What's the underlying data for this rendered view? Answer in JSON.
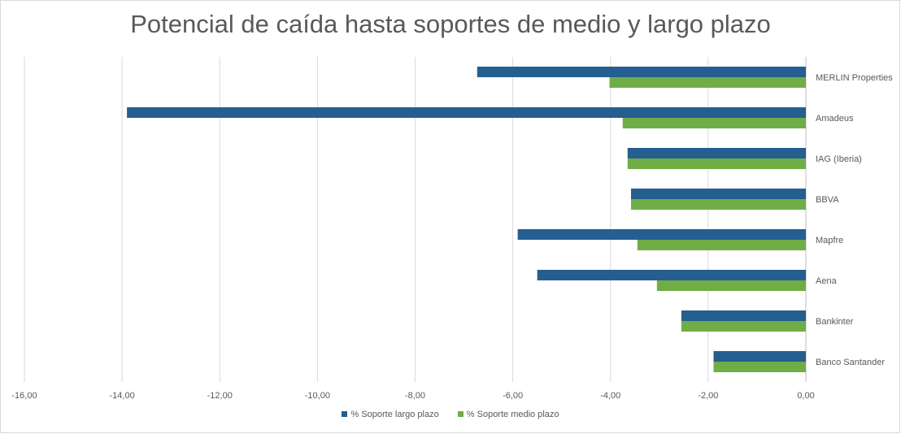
{
  "chart_data": {
    "type": "bar",
    "orientation": "horizontal",
    "title": "Potencial de caída hasta soportes de medio y largo plazo",
    "categories": [
      "MERLIN Properties",
      "Amadeus",
      "IAG (Iberia)",
      "BBVA",
      "Mapfre",
      "Aena",
      "Bankinter",
      "Banco Santander"
    ],
    "series": [
      {
        "name": "% Soporte largo plazo",
        "color": "#255e91",
        "values": [
          -6.73,
          -13.9,
          -3.65,
          -3.58,
          -5.9,
          -5.5,
          -2.55,
          -1.89
        ]
      },
      {
        "name": "% Soporte medio plazo",
        "color": "#70ad47",
        "values": [
          -4.02,
          -3.75,
          -3.65,
          -3.58,
          -3.45,
          -3.05,
          -2.55,
          -1.89
        ]
      }
    ],
    "xlim": [
      -16,
      0
    ],
    "xticks": [
      -16,
      -14,
      -12,
      -10,
      -8,
      -6,
      -4,
      -2,
      0
    ],
    "xtick_labels": [
      "-16,00",
      "-14,00",
      "-12,00",
      "-10,00",
      "-8,00",
      "-6,00",
      "-4,00",
      "-2,00",
      "0,00"
    ],
    "grid": true,
    "legend_position": "bottom"
  }
}
